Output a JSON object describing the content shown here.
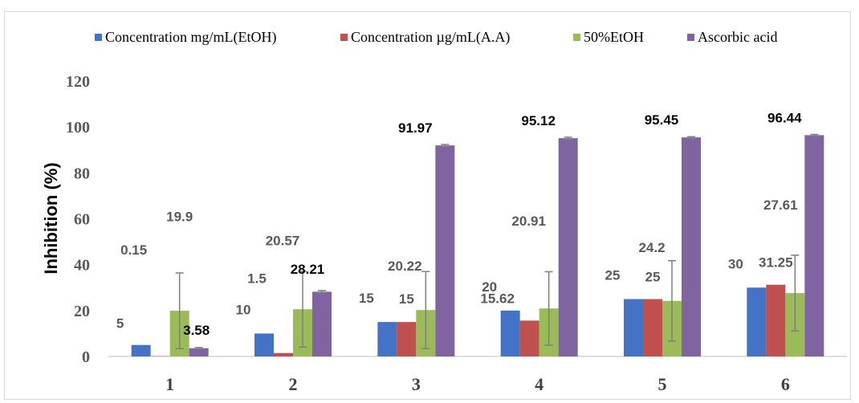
{
  "chart_data": {
    "type": "bar",
    "categories": [
      "1",
      "2",
      "3",
      "4",
      "5",
      "6"
    ],
    "ylabel": "Inhibition (%)",
    "xlabel": "",
    "ylim": [
      0,
      120
    ],
    "yticks": [
      "0",
      "20",
      "40",
      "60",
      "80",
      "100",
      "120"
    ],
    "grid": false,
    "legend_position": "top",
    "series": [
      {
        "name": "Concentration mg/mL(EtOH)",
        "color": "#4472C4",
        "values": [
          5,
          10,
          15,
          20,
          25,
          30
        ],
        "labels": [
          "5",
          "10",
          "15",
          "20",
          "25",
          "30"
        ],
        "errors": [
          0,
          0,
          0,
          0,
          0,
          0
        ]
      },
      {
        "name": "Concentration µg/mL(A.A)",
        "color": "#C0504D",
        "values": [
          0.15,
          1.5,
          15,
          15.62,
          25,
          31.25
        ],
        "labels": [
          "0.15",
          "1.5",
          "15",
          "15.62",
          "25",
          "31.25"
        ],
        "errors": [
          0,
          0,
          0,
          0,
          0,
          0
        ]
      },
      {
        "name": "50%EtOH",
        "color": "#9BBB59",
        "values": [
          19.9,
          20.57,
          20.22,
          20.91,
          24.2,
          27.61
        ],
        "labels": [
          "19.9",
          "20.57",
          "20.22",
          "20.91",
          "24.2",
          "27.61"
        ],
        "errors": [
          16.5,
          16.5,
          16.8,
          16.0,
          17.5,
          16.5
        ]
      },
      {
        "name": "Ascorbic acid",
        "color": "#8064A2",
        "values": [
          3.58,
          28.21,
          91.97,
          95.12,
          95.45,
          96.44
        ],
        "labels": [
          "3.58",
          "28.21",
          "91.97",
          "95.12",
          "95.45",
          "96.44"
        ],
        "errors": [
          0.3,
          0.5,
          0.4,
          0.4,
          0.3,
          0.3
        ]
      }
    ]
  }
}
